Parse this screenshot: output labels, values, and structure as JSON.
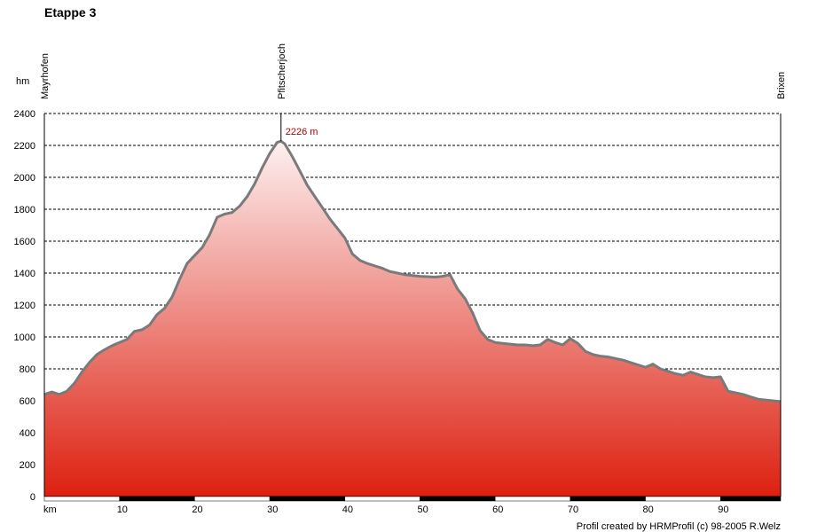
{
  "title": "Etappe 3",
  "credit": "Profil created by HRMProfil (c) 98-2005 R.Welz",
  "colors": {
    "fill_top": "#fdf0f0",
    "fill_bottom": "#dd2010",
    "line": "#7a7a7a",
    "peak_label": "#b00000"
  },
  "chart_data": {
    "type": "area",
    "title": "Etappe 3",
    "ylabel": "hm",
    "xlabel": "km",
    "xlim": [
      0,
      98
    ],
    "ylim": [
      0,
      2400
    ],
    "yticks": [
      0,
      200,
      400,
      600,
      800,
      1000,
      1200,
      1400,
      1600,
      1800,
      2000,
      2200,
      2400
    ],
    "xticks": [
      10,
      20,
      30,
      40,
      50,
      60,
      70,
      80,
      90
    ],
    "grid": true,
    "waypoints": [
      {
        "name": "Mayrhofen",
        "x": 0
      },
      {
        "name": "Pfitscherjoch",
        "x": 31.5
      },
      {
        "name": "Brixen",
        "x": 98
      }
    ],
    "peak": {
      "x": 31.5,
      "y": 2226,
      "label": "2226 m"
    },
    "x": [
      0,
      1,
      2,
      3,
      4,
      5,
      6,
      7,
      8,
      9,
      10,
      11,
      12,
      13,
      14,
      15,
      16,
      17,
      18,
      19,
      20,
      21,
      22,
      23,
      24,
      25,
      26,
      27,
      28,
      29,
      30,
      31,
      31.5,
      32,
      33,
      34,
      35,
      36,
      37,
      38,
      39,
      40,
      41,
      42,
      43,
      44,
      45,
      46,
      47,
      48,
      49,
      50,
      51,
      52,
      53,
      54,
      55,
      56,
      57,
      58,
      59,
      60,
      61,
      62,
      63,
      64,
      65,
      66,
      67,
      68,
      69,
      70,
      71,
      72,
      73,
      74,
      75,
      76,
      77,
      78,
      79,
      80,
      81,
      82,
      83,
      84,
      85,
      86,
      87,
      88,
      89,
      90,
      91,
      92,
      93,
      94,
      95,
      96,
      97,
      98
    ],
    "y": [
      640,
      655,
      640,
      660,
      710,
      780,
      840,
      890,
      920,
      945,
      965,
      985,
      1035,
      1045,
      1075,
      1140,
      1180,
      1250,
      1360,
      1460,
      1510,
      1560,
      1640,
      1750,
      1770,
      1780,
      1820,
      1880,
      1960,
      2060,
      2150,
      2220,
      2226,
      2210,
      2130,
      2040,
      1950,
      1880,
      1810,
      1740,
      1680,
      1620,
      1520,
      1480,
      1460,
      1445,
      1430,
      1410,
      1400,
      1390,
      1385,
      1380,
      1378,
      1375,
      1380,
      1390,
      1300,
      1240,
      1150,
      1040,
      985,
      965,
      960,
      955,
      950,
      950,
      945,
      950,
      985,
      965,
      950,
      990,
      960,
      910,
      890,
      880,
      875,
      865,
      855,
      840,
      825,
      810,
      830,
      800,
      785,
      770,
      760,
      780,
      765,
      750,
      745,
      750,
      660,
      650,
      640,
      625,
      610,
      605,
      600,
      595
    ]
  }
}
